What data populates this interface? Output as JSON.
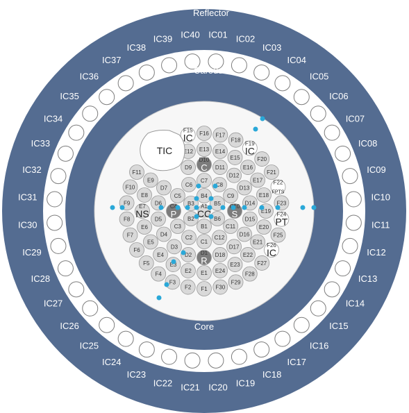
{
  "labels": {
    "reflector": "Reflector",
    "carousel": "Carousel",
    "core": "Core",
    "tic": "TIC"
  },
  "colors": {
    "reflector": "#546c91",
    "carousel_ring": "#ffffff",
    "core_band": "#546c91",
    "core_fill": "#f7f7f7",
    "fuel": "#d9d9d9",
    "fuel_stroke": "#9a9a9a",
    "control": "#7c7c7c",
    "marker": "#2aa8d8"
  },
  "ic_positions": [
    "IC01",
    "IC02",
    "IC03",
    "IC04",
    "IC05",
    "IC06",
    "IC07",
    "IC08",
    "IC09",
    "IC10",
    "IC11",
    "IC12",
    "IC13",
    "IC14",
    "IC15",
    "IC16",
    "IC17",
    "IC18",
    "IC19",
    "IC20",
    "IC21",
    "IC22",
    "IC23",
    "IC24",
    "IC25",
    "IC26",
    "IC27",
    "IC28",
    "IC29",
    "IC30",
    "IC31",
    "IC32",
    "IC33",
    "IC34",
    "IC35",
    "IC36",
    "IC37",
    "IC38",
    "IC39",
    "IC40"
  ],
  "rings": {
    "A": [
      "A1"
    ],
    "B": [
      "B1",
      "B2",
      "B3",
      "B4",
      "B5",
      "B6"
    ],
    "C": [
      "C1",
      "C2",
      "C3",
      "C4",
      "C5",
      "C6",
      "C7",
      "C8",
      "C9",
      "C10",
      "C11",
      "C12"
    ],
    "D": [
      "D1",
      "D2",
      "D3",
      "D4",
      "D5",
      "D6",
      "D7",
      "D8",
      "D9",
      "D10",
      "D11",
      "D12",
      "D13",
      "D14",
      "D15",
      "D16",
      "D17",
      "D18"
    ],
    "E": [
      "E1",
      "E2",
      "E3",
      "E4",
      "E5",
      "E6",
      "E7",
      "E8",
      "E9",
      "E10",
      "E11",
      "E12",
      "E13",
      "E14",
      "E15",
      "E16",
      "E17",
      "E18",
      "E19",
      "E20",
      "E21",
      "E22",
      "E23",
      "E24"
    ],
    "F": [
      "F1",
      "F2",
      "F3",
      "F4",
      "F5",
      "F6",
      "F7",
      "F8",
      "F9",
      "F10",
      "F11",
      "F12",
      "F13",
      "F14",
      "F15",
      "F16",
      "F17",
      "F18",
      "F19",
      "F20",
      "F21",
      "F22",
      "F23",
      "F24",
      "F25",
      "F26",
      "F27",
      "F28",
      "F29",
      "F30"
    ]
  },
  "specials": {
    "A1": "CC",
    "C4": "P",
    "C10": "S",
    "D1": "R",
    "D10": "C",
    "E7": "NS",
    "F15": "IC",
    "F19": "IC",
    "F22": "FPTS",
    "F24": "PT",
    "F26": "IC"
  }
}
